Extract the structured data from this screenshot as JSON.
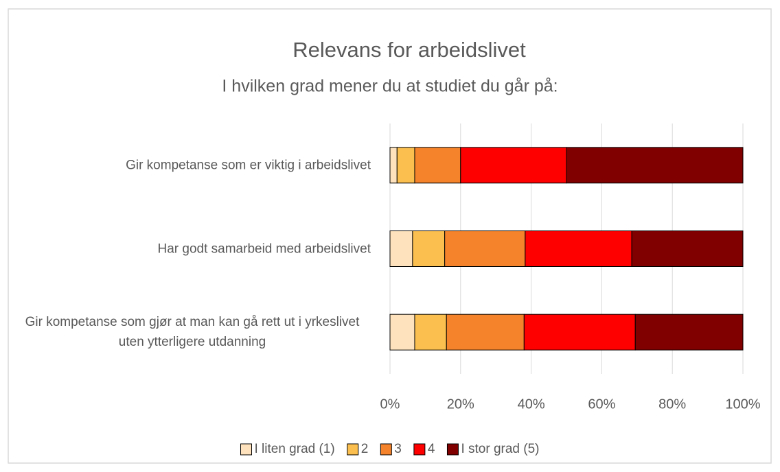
{
  "chart_data": {
    "type": "bar",
    "title": "Relevans for arbeidslivet",
    "subtitle": "I hvilken grad mener du at studiet du går på:",
    "categories": [
      "Gir kompetanse som er viktig i arbeidslivet",
      "Har godt samarbeid med arbeidslivet",
      "Gir kompetanse som gjør at man kan gå rett ut i yrkeslivet uten ytterligere utdanning"
    ],
    "series": [
      {
        "name": "I liten grad (1)",
        "color": "#fde2bd",
        "values": [
          2,
          6.4,
          7
        ]
      },
      {
        "name": "2",
        "color": "#fbbf4f",
        "values": [
          5,
          9.1,
          9
        ]
      },
      {
        "name": "3",
        "color": "#f5832b",
        "values": [
          13,
          22.8,
          22
        ]
      },
      {
        "name": "4",
        "color": "#fe0000",
        "values": [
          30,
          30.2,
          31.5
        ]
      },
      {
        "name": "I stor grad (5)",
        "color": "#800000",
        "values": [
          50,
          31.5,
          30.5
        ]
      }
    ],
    "xlim": [
      0,
      100
    ],
    "xticks": [
      {
        "value": 0,
        "label": "0%"
      },
      {
        "value": 20,
        "label": "20%"
      },
      {
        "value": 40,
        "label": "40%"
      },
      {
        "value": 60,
        "label": "60%"
      },
      {
        "value": 80,
        "label": "80%"
      },
      {
        "value": 100,
        "label": "100%"
      }
    ],
    "grid": true,
    "legend": "bottom"
  }
}
